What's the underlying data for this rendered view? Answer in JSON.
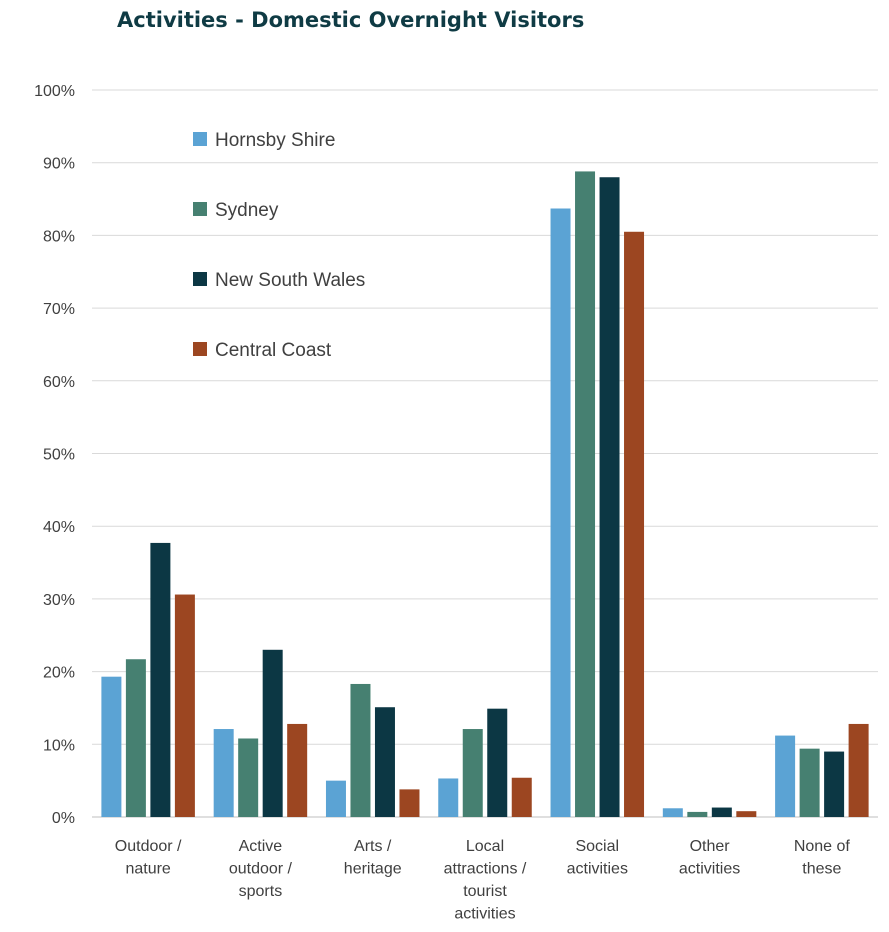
{
  "chart_data": {
    "type": "bar",
    "title": "Activities - Domestic Overnight Visitors",
    "xlabel": "",
    "ylabel": "",
    "ylim": [
      0,
      100
    ],
    "yticks": [
      "0%",
      "10%",
      "20%",
      "30%",
      "40%",
      "50%",
      "60%",
      "70%",
      "80%",
      "90%",
      "100%"
    ],
    "grid": true,
    "legend_position": "top-left",
    "categories": [
      [
        "Outdoor /",
        "nature"
      ],
      [
        "Active",
        "outdoor /",
        "sports"
      ],
      [
        "Arts /",
        "heritage"
      ],
      [
        "Local",
        "attractions /",
        "tourist",
        "activities"
      ],
      [
        "Social",
        "activities"
      ],
      [
        "Other",
        "activities"
      ],
      [
        "None of",
        "these"
      ]
    ],
    "series": [
      {
        "name": "Hornsby Shire",
        "color": "#5ba3d4",
        "values": [
          19.3,
          12.1,
          5.0,
          5.3,
          83.7,
          1.2,
          11.2
        ]
      },
      {
        "name": "Sydney",
        "color": "#468071",
        "values": [
          21.7,
          10.8,
          18.3,
          12.1,
          88.8,
          0.7,
          9.4
        ]
      },
      {
        "name": "New South Wales",
        "color": "#0c3744",
        "values": [
          37.7,
          23.0,
          15.1,
          14.9,
          88.0,
          1.3,
          9.0
        ]
      },
      {
        "name": "Central Coast",
        "color": "#9c4621",
        "values": [
          30.6,
          12.8,
          3.8,
          5.4,
          80.5,
          0.8,
          12.8
        ]
      }
    ]
  }
}
